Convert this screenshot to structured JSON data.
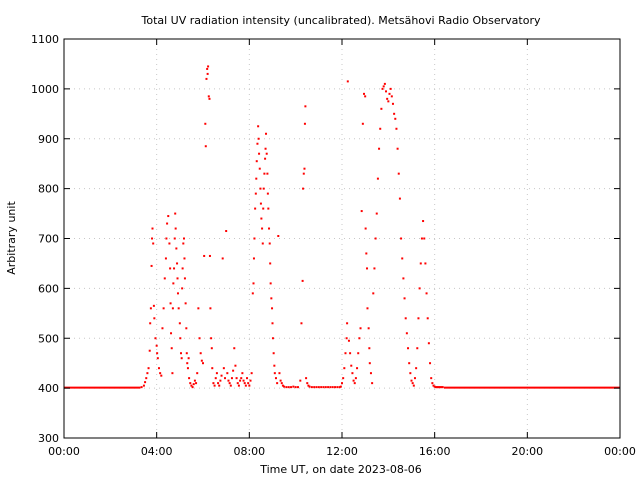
{
  "chart_data": {
    "type": "scatter",
    "title": "Total UV radiation intensity (uncalibrated). Metsähovi Radio Observatory",
    "xlabel": "Time UT, on date 2023-08-06",
    "ylabel": "Arbitrary unit",
    "xlim": [
      0,
      24
    ],
    "ylim": [
      300,
      1100
    ],
    "grid": true,
    "color": "#ff0000",
    "x_ticks": [
      {
        "value": 0,
        "label": "00:00"
      },
      {
        "value": 4,
        "label": "04:00"
      },
      {
        "value": 8,
        "label": "08:00"
      },
      {
        "value": 12,
        "label": "12:00"
      },
      {
        "value": 16,
        "label": "16:00"
      },
      {
        "value": 20,
        "label": "20:00"
      },
      {
        "value": 24,
        "label": "00:00"
      }
    ],
    "y_ticks": [
      {
        "value": 300,
        "label": "300"
      },
      {
        "value": 400,
        "label": "400"
      },
      {
        "value": 500,
        "label": "500"
      },
      {
        "value": 600,
        "label": "600"
      },
      {
        "value": 700,
        "label": "700"
      },
      {
        "value": 800,
        "label": "800"
      },
      {
        "value": 900,
        "label": "900"
      },
      {
        "value": 1000,
        "label": "1000"
      },
      {
        "value": 1100,
        "label": "1100"
      }
    ],
    "baseline_segments": [
      {
        "x_start": 0.0,
        "x_end": 3.3,
        "y": 401
      },
      {
        "x_start": 16.4,
        "x_end": 24.0,
        "y": 401
      }
    ],
    "points": [
      [
        3.35,
        402
      ],
      [
        3.45,
        405
      ],
      [
        3.5,
        412
      ],
      [
        3.55,
        420
      ],
      [
        3.6,
        430
      ],
      [
        3.65,
        440
      ],
      [
        3.7,
        475
      ],
      [
        3.72,
        530
      ],
      [
        3.75,
        560
      ],
      [
        3.78,
        645
      ],
      [
        3.8,
        700
      ],
      [
        3.82,
        720
      ],
      [
        3.85,
        690
      ],
      [
        3.88,
        565
      ],
      [
        3.9,
        540
      ],
      [
        3.95,
        500
      ],
      [
        4.0,
        485
      ],
      [
        4.02,
        470
      ],
      [
        4.05,
        460
      ],
      [
        4.1,
        440
      ],
      [
        4.15,
        430
      ],
      [
        4.2,
        425
      ],
      [
        4.25,
        520
      ],
      [
        4.3,
        560
      ],
      [
        4.35,
        620
      ],
      [
        4.4,
        660
      ],
      [
        4.42,
        700
      ],
      [
        4.45,
        730
      ],
      [
        4.5,
        745
      ],
      [
        4.55,
        690
      ],
      [
        4.58,
        640
      ],
      [
        4.6,
        570
      ],
      [
        4.62,
        510
      ],
      [
        4.65,
        480
      ],
      [
        4.68,
        430
      ],
      [
        4.7,
        560
      ],
      [
        4.72,
        610
      ],
      [
        4.75,
        640
      ],
      [
        4.78,
        700
      ],
      [
        4.8,
        750
      ],
      [
        4.82,
        720
      ],
      [
        4.85,
        680
      ],
      [
        4.88,
        650
      ],
      [
        4.9,
        620
      ],
      [
        4.92,
        590
      ],
      [
        4.95,
        560
      ],
      [
        5.0,
        530
      ],
      [
        5.02,
        500
      ],
      [
        5.05,
        470
      ],
      [
        5.08,
        460
      ],
      [
        5.1,
        600
      ],
      [
        5.12,
        640
      ],
      [
        5.15,
        690
      ],
      [
        5.18,
        700
      ],
      [
        5.2,
        660
      ],
      [
        5.22,
        620
      ],
      [
        5.25,
        570
      ],
      [
        5.28,
        520
      ],
      [
        5.3,
        470
      ],
      [
        5.32,
        450
      ],
      [
        5.35,
        440
      ],
      [
        5.38,
        460
      ],
      [
        5.4,
        420
      ],
      [
        5.45,
        410
      ],
      [
        5.5,
        405
      ],
      [
        5.55,
        402
      ],
      [
        5.6,
        408
      ],
      [
        5.65,
        415
      ],
      [
        5.7,
        410
      ],
      [
        5.75,
        430
      ],
      [
        5.8,
        560
      ],
      [
        5.85,
        500
      ],
      [
        5.9,
        470
      ],
      [
        5.95,
        455
      ],
      [
        6.0,
        450
      ],
      [
        6.05,
        665
      ],
      [
        6.1,
        930
      ],
      [
        6.12,
        885
      ],
      [
        6.15,
        1020
      ],
      [
        6.18,
        1040
      ],
      [
        6.2,
        1030
      ],
      [
        6.22,
        1045
      ],
      [
        6.25,
        985
      ],
      [
        6.28,
        980
      ],
      [
        6.3,
        665
      ],
      [
        6.32,
        560
      ],
      [
        6.35,
        500
      ],
      [
        6.38,
        480
      ],
      [
        6.4,
        440
      ],
      [
        6.45,
        410
      ],
      [
        6.5,
        405
      ],
      [
        6.55,
        420
      ],
      [
        6.6,
        430
      ],
      [
        6.65,
        410
      ],
      [
        6.7,
        405
      ],
      [
        6.75,
        415
      ],
      [
        6.8,
        425
      ],
      [
        6.85,
        660
      ],
      [
        6.9,
        440
      ],
      [
        6.95,
        420
      ],
      [
        7.0,
        715
      ],
      [
        7.05,
        430
      ],
      [
        7.1,
        415
      ],
      [
        7.15,
        410
      ],
      [
        7.2,
        405
      ],
      [
        7.25,
        420
      ],
      [
        7.3,
        435
      ],
      [
        7.35,
        480
      ],
      [
        7.4,
        445
      ],
      [
        7.45,
        420
      ],
      [
        7.5,
        410
      ],
      [
        7.55,
        405
      ],
      [
        7.6,
        415
      ],
      [
        7.65,
        420
      ],
      [
        7.7,
        430
      ],
      [
        7.75,
        415
      ],
      [
        7.8,
        410
      ],
      [
        7.85,
        405
      ],
      [
        7.9,
        420
      ],
      [
        7.95,
        410
      ],
      [
        8.0,
        405
      ],
      [
        8.05,
        415
      ],
      [
        8.1,
        430
      ],
      [
        8.15,
        590
      ],
      [
        8.18,
        610
      ],
      [
        8.2,
        660
      ],
      [
        8.22,
        700
      ],
      [
        8.25,
        760
      ],
      [
        8.28,
        790
      ],
      [
        8.3,
        820
      ],
      [
        8.32,
        855
      ],
      [
        8.35,
        890
      ],
      [
        8.38,
        925
      ],
      [
        8.4,
        900
      ],
      [
        8.42,
        870
      ],
      [
        8.45,
        840
      ],
      [
        8.48,
        800
      ],
      [
        8.5,
        770
      ],
      [
        8.52,
        740
      ],
      [
        8.55,
        720
      ],
      [
        8.58,
        690
      ],
      [
        8.6,
        760
      ],
      [
        8.62,
        800
      ],
      [
        8.65,
        830
      ],
      [
        8.68,
        860
      ],
      [
        8.7,
        880
      ],
      [
        8.72,
        910
      ],
      [
        8.75,
        870
      ],
      [
        8.78,
        830
      ],
      [
        8.8,
        790
      ],
      [
        8.82,
        760
      ],
      [
        8.85,
        720
      ],
      [
        8.88,
        690
      ],
      [
        8.9,
        650
      ],
      [
        8.92,
        610
      ],
      [
        8.95,
        580
      ],
      [
        8.98,
        560
      ],
      [
        9.0,
        530
      ],
      [
        9.02,
        500
      ],
      [
        9.05,
        470
      ],
      [
        9.08,
        445
      ],
      [
        9.1,
        430
      ],
      [
        9.15,
        420
      ],
      [
        9.2,
        410
      ],
      [
        9.25,
        705
      ],
      [
        9.3,
        430
      ],
      [
        9.35,
        415
      ],
      [
        9.4,
        410
      ],
      [
        9.45,
        405
      ],
      [
        9.5,
        403
      ],
      [
        9.6,
        402
      ],
      [
        9.7,
        402
      ],
      [
        9.8,
        402
      ],
      [
        9.9,
        403
      ],
      [
        10.0,
        402
      ],
      [
        10.1,
        402
      ],
      [
        10.2,
        415
      ],
      [
        10.25,
        530
      ],
      [
        10.3,
        615
      ],
      [
        10.32,
        800
      ],
      [
        10.35,
        830
      ],
      [
        10.38,
        840
      ],
      [
        10.4,
        930
      ],
      [
        10.42,
        965
      ],
      [
        10.45,
        420
      ],
      [
        10.5,
        410
      ],
      [
        10.55,
        405
      ],
      [
        10.6,
        403
      ],
      [
        10.7,
        402
      ],
      [
        10.8,
        402
      ],
      [
        10.9,
        402
      ],
      [
        11.0,
        402
      ],
      [
        11.1,
        402
      ],
      [
        11.2,
        402
      ],
      [
        11.3,
        402
      ],
      [
        11.4,
        402
      ],
      [
        11.5,
        402
      ],
      [
        11.6,
        402
      ],
      [
        11.7,
        402
      ],
      [
        11.8,
        402
      ],
      [
        11.9,
        402
      ],
      [
        11.95,
        403
      ],
      [
        12.0,
        410
      ],
      [
        12.05,
        420
      ],
      [
        12.1,
        440
      ],
      [
        12.15,
        470
      ],
      [
        12.2,
        500
      ],
      [
        12.22,
        530
      ],
      [
        12.25,
        1015
      ],
      [
        12.3,
        495
      ],
      [
        12.35,
        470
      ],
      [
        12.4,
        445
      ],
      [
        12.45,
        430
      ],
      [
        12.5,
        415
      ],
      [
        12.55,
        410
      ],
      [
        12.6,
        420
      ],
      [
        12.65,
        440
      ],
      [
        12.7,
        470
      ],
      [
        12.75,
        500
      ],
      [
        12.8,
        520
      ],
      [
        12.85,
        755
      ],
      [
        12.9,
        930
      ],
      [
        12.95,
        990
      ],
      [
        13.0,
        985
      ],
      [
        13.02,
        720
      ],
      [
        13.05,
        670
      ],
      [
        13.08,
        640
      ],
      [
        13.1,
        560
      ],
      [
        13.15,
        520
      ],
      [
        13.18,
        480
      ],
      [
        13.2,
        450
      ],
      [
        13.25,
        430
      ],
      [
        13.3,
        410
      ],
      [
        13.35,
        590
      ],
      [
        13.4,
        640
      ],
      [
        13.45,
        700
      ],
      [
        13.5,
        750
      ],
      [
        13.55,
        820
      ],
      [
        13.6,
        880
      ],
      [
        13.65,
        920
      ],
      [
        13.7,
        960
      ],
      [
        13.75,
        1000
      ],
      [
        13.8,
        1005
      ],
      [
        13.85,
        1010
      ],
      [
        13.9,
        995
      ],
      [
        13.95,
        980
      ],
      [
        14.0,
        975
      ],
      [
        14.05,
        990
      ],
      [
        14.1,
        1000
      ],
      [
        14.15,
        985
      ],
      [
        14.2,
        970
      ],
      [
        14.25,
        950
      ],
      [
        14.3,
        940
      ],
      [
        14.35,
        920
      ],
      [
        14.4,
        880
      ],
      [
        14.45,
        830
      ],
      [
        14.5,
        780
      ],
      [
        14.55,
        700
      ],
      [
        14.6,
        660
      ],
      [
        14.65,
        620
      ],
      [
        14.7,
        580
      ],
      [
        14.75,
        540
      ],
      [
        14.8,
        510
      ],
      [
        14.85,
        480
      ],
      [
        14.9,
        450
      ],
      [
        14.95,
        430
      ],
      [
        15.0,
        415
      ],
      [
        15.05,
        410
      ],
      [
        15.1,
        405
      ],
      [
        15.15,
        420
      ],
      [
        15.2,
        440
      ],
      [
        15.25,
        480
      ],
      [
        15.3,
        540
      ],
      [
        15.35,
        600
      ],
      [
        15.4,
        650
      ],
      [
        15.45,
        700
      ],
      [
        15.5,
        735
      ],
      [
        15.55,
        700
      ],
      [
        15.6,
        650
      ],
      [
        15.65,
        590
      ],
      [
        15.7,
        540
      ],
      [
        15.75,
        490
      ],
      [
        15.8,
        450
      ],
      [
        15.85,
        420
      ],
      [
        15.9,
        410
      ],
      [
        15.95,
        405
      ],
      [
        16.0,
        403
      ],
      [
        16.05,
        402
      ],
      [
        16.1,
        402
      ],
      [
        16.15,
        402
      ],
      [
        16.2,
        402
      ],
      [
        16.25,
        402
      ],
      [
        16.3,
        402
      ],
      [
        16.35,
        402
      ]
    ]
  }
}
